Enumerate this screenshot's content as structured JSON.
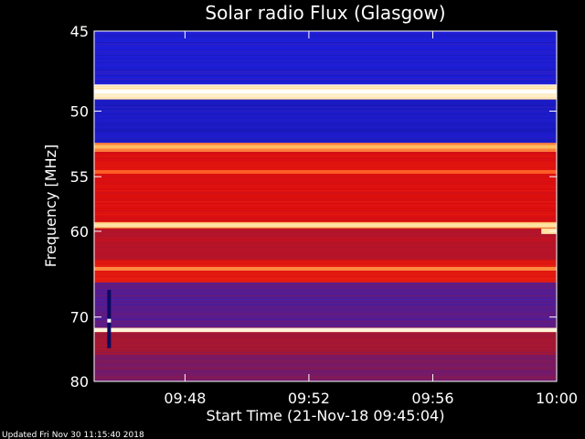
{
  "chart_data": {
    "type": "heatmap",
    "title": "Solar radio Flux (Glasgow)",
    "xlabel": "Start Time (21-Nov-18 09:45:04)",
    "ylabel": "Frequency [MHz]",
    "footer": "Updated Fri Nov 30 11:15:40 2018",
    "x_ticks": [
      "09:48",
      "09:52",
      "09:56",
      "10:00"
    ],
    "x_tick_minutes": [
      48,
      52,
      56,
      60
    ],
    "xlim_minutes": [
      45.0667,
      60.0
    ],
    "y_ticks": [
      "45",
      "50",
      "55",
      "60",
      "70",
      "80"
    ],
    "y_tick_values": [
      45,
      50,
      55,
      60,
      70,
      80
    ],
    "ylim": [
      45,
      80
    ],
    "y_scale": "reciprocal",
    "colormap": "blue-red-yellow-white",
    "bands": [
      {
        "from": 45.0,
        "to": 48.2,
        "level": 0.18
      },
      {
        "from": 48.2,
        "to": 49.2,
        "level": 0.97
      },
      {
        "from": 49.2,
        "to": 52.3,
        "level": 0.16
      },
      {
        "from": 52.3,
        "to": 53.0,
        "level": 0.85
      },
      {
        "from": 53.0,
        "to": 59.1,
        "level": 0.62
      },
      {
        "from": 59.1,
        "to": 59.7,
        "level": 0.9
      },
      {
        "from": 59.7,
        "to": 63.0,
        "level": 0.52
      },
      {
        "from": 63.0,
        "to": 65.6,
        "level": 0.66
      },
      {
        "from": 65.6,
        "to": 71.5,
        "level": 0.3
      },
      {
        "from": 71.5,
        "to": 72.1,
        "level": 0.9
      },
      {
        "from": 72.1,
        "to": 75.5,
        "level": 0.45
      },
      {
        "from": 75.5,
        "to": 80.0,
        "level": 0.36
      }
    ],
    "bright_lines": [
      {
        "freq": 48.7,
        "level": 1.0
      },
      {
        "freq": 52.6,
        "level": 0.9
      },
      {
        "freq": 54.6,
        "level": 0.82
      },
      {
        "freq": 59.4,
        "level": 0.95
      },
      {
        "freq": 64.0,
        "level": 0.86
      },
      {
        "freq": 71.8,
        "level": 0.98
      }
    ],
    "events": [
      {
        "time_min": 45.55,
        "freq_from": 66.5,
        "freq_to": 74.5,
        "kind": "vertical-burst"
      },
      {
        "time_min": 59.8,
        "freq": 60.0,
        "kind": "bright-spot"
      }
    ]
  },
  "colors": {
    "background": "#000000",
    "text": "#ffffff",
    "low": "#1a1aa8",
    "mid": "#d01010",
    "high": "#ffd070",
    "peak": "#ffffff"
  }
}
